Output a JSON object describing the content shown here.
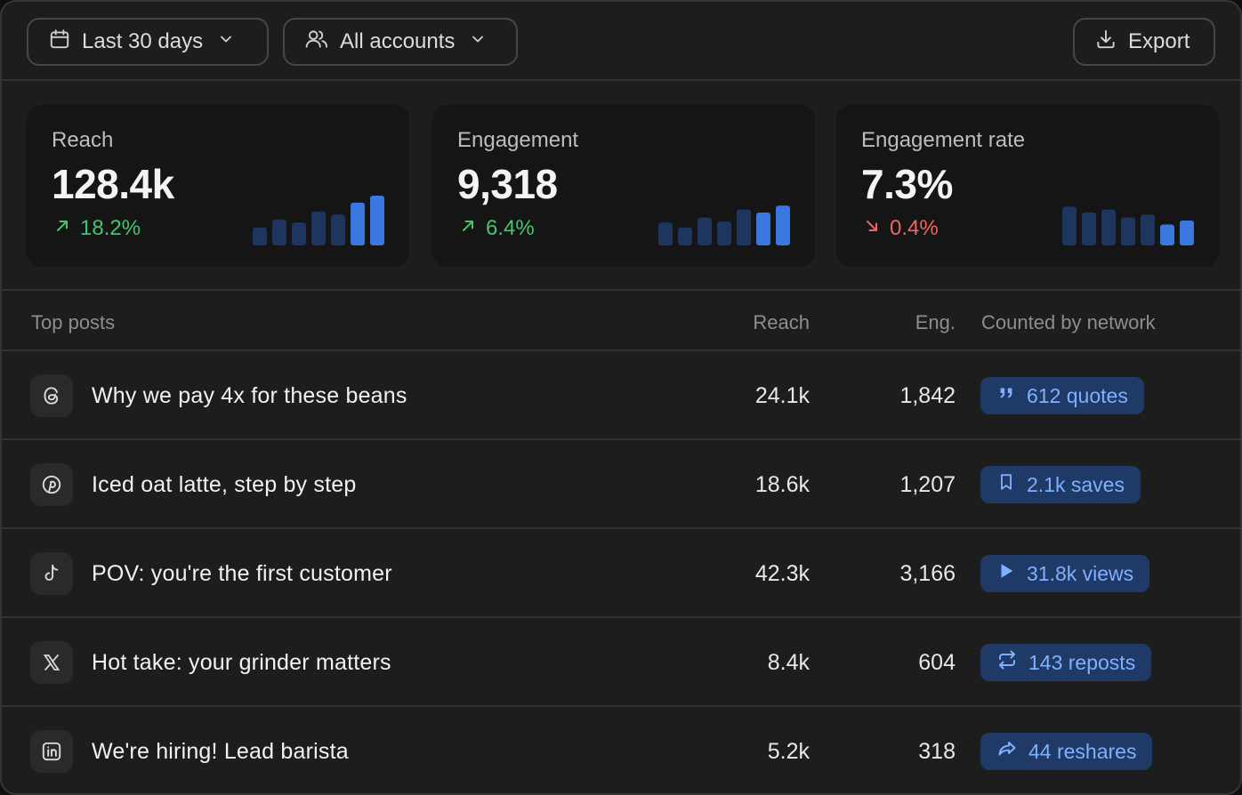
{
  "toolbar": {
    "range_label": "Last 30 days",
    "accounts_label": "All accounts",
    "export_label": "Export"
  },
  "stats": [
    {
      "label": "Reach",
      "value": "128.4k",
      "delta": "18.2%",
      "direction": "up",
      "trend": [
        0.36,
        0.52,
        0.46,
        0.68,
        0.62,
        0.86,
        1.0
      ]
    },
    {
      "label": "Engagement",
      "value": "9,318",
      "delta": "6.4%",
      "direction": "up",
      "trend": [
        0.46,
        0.36,
        0.56,
        0.48,
        0.72,
        0.66,
        0.8
      ]
    },
    {
      "label": "Engagement rate",
      "value": "7.3%",
      "delta": "0.4%",
      "direction": "down",
      "trend": [
        0.78,
        0.66,
        0.72,
        0.56,
        0.62,
        0.42,
        0.5
      ]
    }
  ],
  "colors": {
    "bar_dim": "#1e3560",
    "bar_bright": "#3a78e0",
    "up": "#46c46f",
    "down": "#f06464"
  },
  "table": {
    "headers": {
      "title": "Top posts",
      "reach": "Reach",
      "eng": "Eng.",
      "network": "Counted by network"
    },
    "rows": [
      {
        "network_icon": "threads-icon",
        "title": "Why we pay 4x for these beans",
        "reach": "24.1k",
        "eng": "1,842",
        "badge_icon": "quote-icon",
        "badge": "612 quotes"
      },
      {
        "network_icon": "pinterest-icon",
        "title": "Iced oat latte, step by step",
        "reach": "18.6k",
        "eng": "1,207",
        "badge_icon": "bookmark-icon",
        "badge": "2.1k saves"
      },
      {
        "network_icon": "tiktok-icon",
        "title": "POV: you're the first customer",
        "reach": "42.3k",
        "eng": "3,166",
        "badge_icon": "play-icon",
        "badge": "31.8k views"
      },
      {
        "network_icon": "x-icon",
        "title": "Hot take: your grinder matters",
        "reach": "8.4k",
        "eng": "604",
        "badge_icon": "repost-icon",
        "badge": "143 reposts"
      },
      {
        "network_icon": "linkedin-icon",
        "title": "We're hiring! Lead barista",
        "reach": "5.2k",
        "eng": "318",
        "badge_icon": "share-icon",
        "badge": "44 reshares"
      }
    ]
  }
}
